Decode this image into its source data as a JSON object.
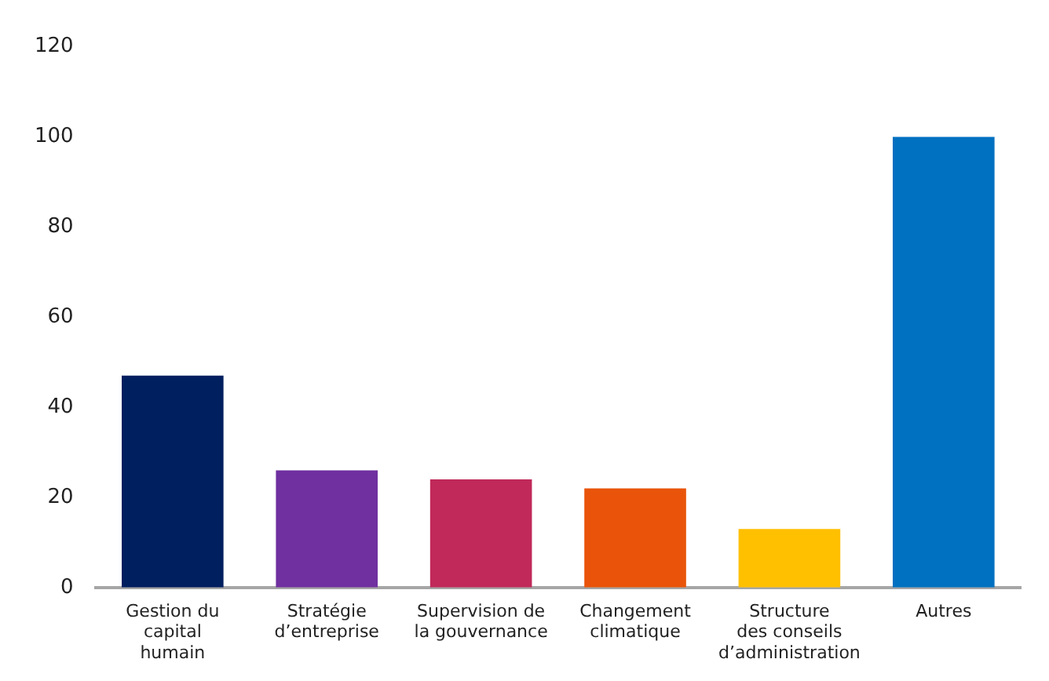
{
  "chart_data": {
    "type": "bar",
    "categories": [
      "Gestion du\ncapital\nhumain",
      "Stratégie\nd’entreprise",
      "Supervision de\nla gouvernance",
      "Changement\nclimatique",
      "Structure\ndes conseils\nd’administration",
      "Autres"
    ],
    "values": [
      47,
      26,
      24,
      22,
      13,
      100
    ],
    "colors": [
      "#001f5f",
      "#7030a0",
      "#c0295a",
      "#e9540a",
      "#ffc000",
      "#0070c0"
    ],
    "ylim": [
      0,
      120
    ],
    "yticks": [
      0,
      20,
      40,
      60,
      80,
      100,
      120
    ],
    "grid": false,
    "legend": false
  }
}
